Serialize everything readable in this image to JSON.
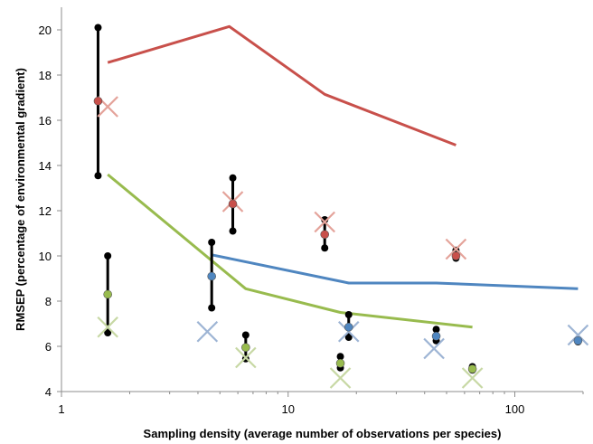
{
  "chart_data": {
    "type": "scatter",
    "title": "",
    "xlabel": "Sampling density (average number of observations per species)",
    "ylabel": "RMSEP (percentage of environmental gradient)",
    "x_scale": "log",
    "xlim": [
      1,
      200
    ],
    "ylim": [
      4,
      21
    ],
    "x_ticks": [
      1,
      10,
      100
    ],
    "x_tick_labels": [
      "1",
      "10",
      "100"
    ],
    "y_ticks": [
      4,
      6,
      8,
      10,
      12,
      14,
      16,
      18,
      20
    ],
    "y_tick_labels": [
      "4",
      "6",
      "8",
      "10",
      "12",
      "14",
      "16",
      "18",
      "20"
    ],
    "grid": false,
    "legend": "none",
    "colors": {
      "red": "#c8504b",
      "blue": "#4f86c0",
      "green": "#98bb4e",
      "black": "#000000",
      "red_x": "#e4a39a",
      "blue_x": "#9db4d4",
      "green_x": "#c7d8a4"
    },
    "lines": [
      {
        "color": "red",
        "points": [
          [
            1.6,
            18.55
          ],
          [
            5.5,
            20.15
          ],
          [
            14.5,
            17.15
          ],
          [
            55,
            14.9
          ]
        ]
      },
      {
        "color": "blue",
        "points": [
          [
            4.6,
            10.05
          ],
          [
            18.5,
            8.8
          ],
          [
            45,
            8.8
          ],
          [
            190,
            8.55
          ]
        ]
      },
      {
        "color": "green",
        "points": [
          [
            1.6,
            13.6
          ],
          [
            6.5,
            8.55
          ],
          [
            17,
            7.5
          ],
          [
            65,
            6.85
          ]
        ]
      }
    ],
    "error_bars": [
      {
        "x": 1.45,
        "low": 13.55,
        "high": 20.1
      },
      {
        "x": 1.6,
        "low": 6.6,
        "high": 10.0
      },
      {
        "x": 4.6,
        "low": 7.7,
        "high": 10.6
      },
      {
        "x": 5.7,
        "low": 11.1,
        "high": 13.45
      },
      {
        "x": 6.5,
        "low": 5.45,
        "high": 6.5
      },
      {
        "x": 14.5,
        "low": 10.35,
        "high": 11.6
      },
      {
        "x": 17,
        "low": 5.05,
        "high": 5.55
      },
      {
        "x": 18.5,
        "low": 6.4,
        "high": 7.4
      },
      {
        "x": 45,
        "low": 6.25,
        "high": 6.75
      },
      {
        "x": 55,
        "low": 9.9,
        "high": 10.25
      },
      {
        "x": 65,
        "low": 4.95,
        "high": 5.1
      },
      {
        "x": 190,
        "low": 6.2,
        "high": 6.3
      }
    ],
    "points": [
      {
        "x": 1.45,
        "y": 16.85,
        "color": "red"
      },
      {
        "x": 1.6,
        "y": 8.3,
        "color": "green"
      },
      {
        "x": 4.6,
        "y": 9.1,
        "color": "blue"
      },
      {
        "x": 5.7,
        "y": 12.3,
        "color": "red"
      },
      {
        "x": 6.5,
        "y": 5.95,
        "color": "green"
      },
      {
        "x": 14.5,
        "y": 10.95,
        "color": "red"
      },
      {
        "x": 17,
        "y": 5.25,
        "color": "green"
      },
      {
        "x": 18.5,
        "y": 6.85,
        "color": "blue"
      },
      {
        "x": 45,
        "y": 6.45,
        "color": "blue"
      },
      {
        "x": 55,
        "y": 10.0,
        "color": "red"
      },
      {
        "x": 65,
        "y": 5.0,
        "color": "green"
      },
      {
        "x": 190,
        "y": 6.25,
        "color": "blue"
      }
    ],
    "x_markers": [
      {
        "x": 1.6,
        "y": 16.6,
        "color": "red_x"
      },
      {
        "x": 5.7,
        "y": 12.4,
        "color": "red_x"
      },
      {
        "x": 14.5,
        "y": 11.5,
        "color": "red_x"
      },
      {
        "x": 55,
        "y": 10.3,
        "color": "red_x"
      },
      {
        "x": 4.4,
        "y": 6.65,
        "color": "blue_x"
      },
      {
        "x": 18.5,
        "y": 6.65,
        "color": "blue_x"
      },
      {
        "x": 44,
        "y": 5.9,
        "color": "blue_x"
      },
      {
        "x": 190,
        "y": 6.5,
        "color": "blue_x"
      },
      {
        "x": 1.6,
        "y": 6.85,
        "color": "green_x"
      },
      {
        "x": 6.5,
        "y": 5.5,
        "color": "green_x"
      },
      {
        "x": 17,
        "y": 4.6,
        "color": "green_x"
      },
      {
        "x": 65,
        "y": 4.6,
        "color": "green_x"
      }
    ]
  }
}
